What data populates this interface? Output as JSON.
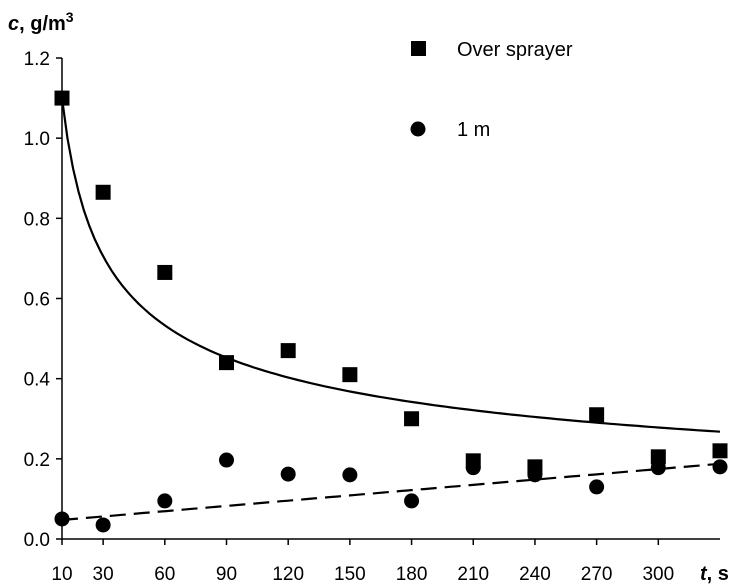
{
  "chart_data": {
    "type": "scatter",
    "xlabel": {
      "var": "t",
      "unit": ", s"
    },
    "ylabel": {
      "var": "c",
      "unit": ", g/m",
      "sup": "3"
    },
    "x_ticks": [
      10,
      30,
      60,
      90,
      120,
      150,
      180,
      210,
      240,
      270,
      300
    ],
    "y_ticks": [
      "0.0",
      "0.2",
      "0.4",
      "0.6",
      "0.8",
      "1.0",
      "1.2"
    ],
    "xlim": [
      10,
      330
    ],
    "ylim": [
      0,
      1.2
    ],
    "grid": false,
    "legend_position": "top-right",
    "series": [
      {
        "name": "Over sprayer",
        "marker": "square",
        "x": [
          10,
          30,
          60,
          90,
          120,
          150,
          180,
          210,
          240,
          270,
          300,
          330
        ],
        "y": [
          1.1,
          0.865,
          0.665,
          0.44,
          0.47,
          0.41,
          0.3,
          0.195,
          0.18,
          0.31,
          0.205,
          0.22
        ],
        "trendline": {
          "type": "power",
          "style": "solid",
          "a": 2.787,
          "b": -0.404
        }
      },
      {
        "name": "1 m",
        "marker": "circle",
        "x": [
          10,
          30,
          60,
          90,
          120,
          150,
          180,
          210,
          240,
          270,
          300,
          330
        ],
        "y": [
          0.05,
          0.035,
          0.095,
          0.197,
          0.162,
          0.16,
          0.095,
          0.178,
          0.16,
          0.13,
          0.178,
          0.18
        ],
        "trendline": {
          "type": "linear",
          "style": "dashed",
          "slope": 0.000438,
          "intercept": 0.0431
        }
      }
    ]
  }
}
